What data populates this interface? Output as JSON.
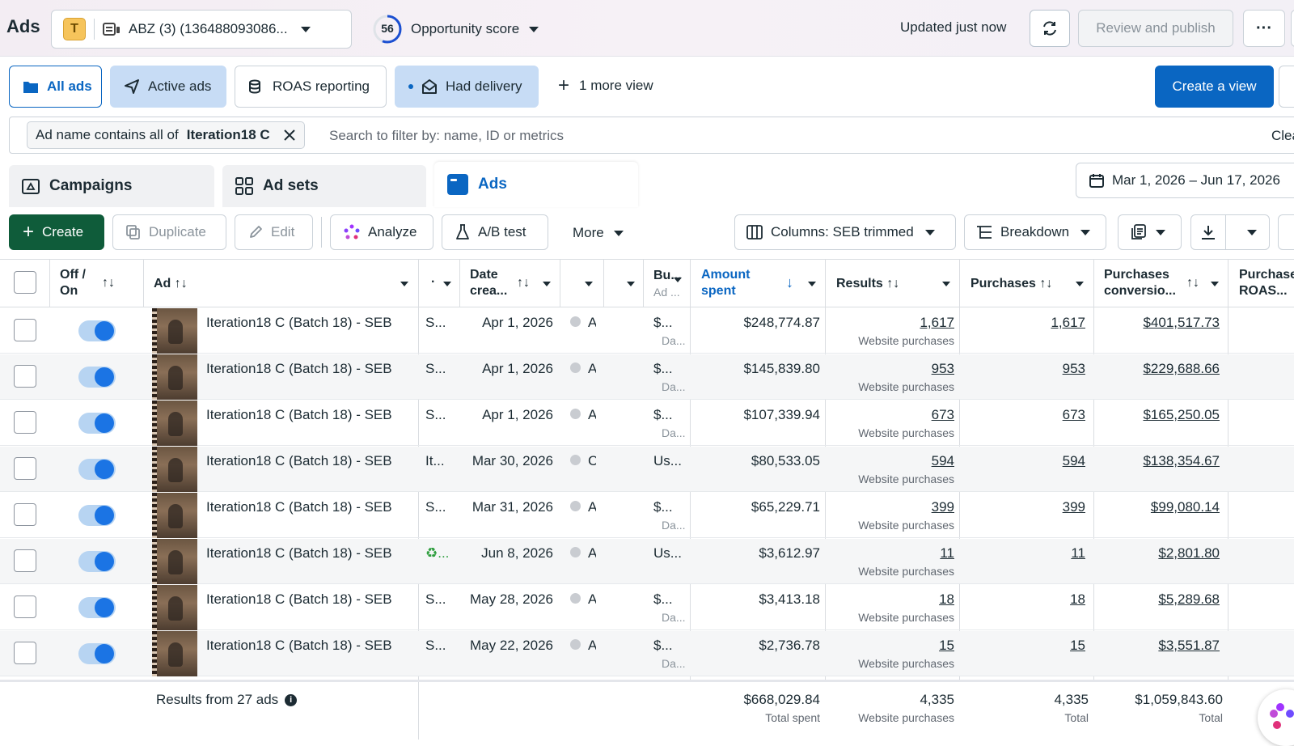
{
  "header": {
    "title": "Ads",
    "account_badge": "T",
    "account_name": "ABZ (3) (136488093086...",
    "opportunity_value": "56",
    "opportunity_label": "Opportunity score",
    "updated": "Updated just now",
    "review_publish": "Review and publish",
    "more_icon": "ellipsis-icon"
  },
  "views": {
    "all_ads": "All ads",
    "active_ads": "Active ads",
    "roas_reporting": "ROAS reporting",
    "had_delivery": "Had delivery",
    "more_view": "1 more view",
    "create_view": "Create a view"
  },
  "filter": {
    "chip_prefix": "Ad name contains all of",
    "chip_value": "Iteration18 C",
    "placeholder": "Search to filter by: name, ID or metrics",
    "clear": "Clea"
  },
  "tabs": {
    "campaigns": "Campaigns",
    "ad_sets": "Ad sets",
    "ads": "Ads",
    "date_range": "Mar 1, 2026 – Jun 17, 2026"
  },
  "toolbar": {
    "create": "Create",
    "duplicate": "Duplicate",
    "edit": "Edit",
    "analyze": "Analyze",
    "ab_test": "A/B test",
    "more": "More",
    "columns": "Columns: SEB trimmed",
    "breakdown": "Breakdown"
  },
  "columns": {
    "off_on_1": "Off /",
    "off_on_2": "On",
    "ad": "Ad",
    "date_1": "Date",
    "date_2": "crea...",
    "bu_1": "Bu...",
    "bu_2": "Ad ...",
    "amount_1": "Amount",
    "amount_2": "spent",
    "results": "Results",
    "purchases": "Purchases",
    "pconv_1": "Purchases",
    "pconv_2": "conversio...",
    "roas_1": "Purchase",
    "roas_2": "ROAS..."
  },
  "rows": [
    {
      "name": "Iteration18 C (Batch 18) - SEB",
      "c1": "S...",
      "date": "Apr 1, 2026",
      "c2": "A",
      "bu": "$...",
      "bu_sub": "Da...",
      "amount": "$248,774.87",
      "results": "1,617",
      "results_sub": "Website purchases",
      "purchases": "1,617",
      "conv": "$401,517.73"
    },
    {
      "name": "Iteration18 C (Batch 18) - SEB",
      "c1": "S...",
      "date": "Apr 1, 2026",
      "c2": "A",
      "bu": "$...",
      "bu_sub": "Da...",
      "amount": "$145,839.80",
      "results": "953",
      "results_sub": "Website purchases",
      "purchases": "953",
      "conv": "$229,688.66"
    },
    {
      "name": "Iteration18 C (Batch 18) - SEB",
      "c1": "S...",
      "date": "Apr 1, 2026",
      "c2": "A",
      "bu": "$...",
      "bu_sub": "Da...",
      "amount": "$107,339.94",
      "results": "673",
      "results_sub": "Website purchases",
      "purchases": "673",
      "conv": "$165,250.05"
    },
    {
      "name": "Iteration18 C (Batch 18) - SEB",
      "c1": "It...",
      "date": "Mar 30, 2026",
      "c2": "C",
      "bu": "Us...",
      "bu_sub": "",
      "amount": "$80,533.05",
      "results": "594",
      "results_sub": "Website purchases",
      "purchases": "594",
      "conv": "$138,354.67"
    },
    {
      "name": "Iteration18 C (Batch 18) - SEB",
      "c1": "S...",
      "date": "Mar 31, 2026",
      "c2": "A",
      "bu": "$...",
      "bu_sub": "Da...",
      "amount": "$65,229.71",
      "results": "399",
      "results_sub": "Website purchases",
      "purchases": "399",
      "conv": "$99,080.14"
    },
    {
      "name": "Iteration18 C (Batch 18) - SEB",
      "c1": "♻...",
      "date": "Jun 8, 2026",
      "c2": "A",
      "bu": "Us...",
      "bu_sub": "",
      "amount": "$3,612.97",
      "results": "11",
      "results_sub": "Website purchases",
      "purchases": "11",
      "conv": "$2,801.80"
    },
    {
      "name": "Iteration18 C (Batch 18) - SEB",
      "c1": "S...",
      "date": "May 28, 2026",
      "c2": "A",
      "bu": "$...",
      "bu_sub": "Da...",
      "amount": "$3,413.18",
      "results": "18",
      "results_sub": "Website purchases",
      "purchases": "18",
      "conv": "$5,289.68"
    },
    {
      "name": "Iteration18 C (Batch 18) - SEB",
      "c1": "S...",
      "date": "May 22, 2026",
      "c2": "A",
      "bu": "$...",
      "bu_sub": "Da...",
      "amount": "$2,736.78",
      "results": "15",
      "results_sub": "Website purchases",
      "purchases": "15",
      "conv": "$3,551.87"
    }
  ],
  "footer": {
    "label": "Results from 27 ads",
    "amount": "$668,029.84",
    "amount_sub": "Total spent",
    "results": "4,335",
    "results_sub": "Website purchases",
    "purchases": "4,335",
    "purchases_sub": "Total",
    "conv": "$1,059,843.60",
    "conv_sub": "Total"
  },
  "colors": {
    "accent": "#0a66c2",
    "create_green": "#0f5c3a",
    "view_active": "#c7dcf5",
    "toggle_on": "#1b74e4"
  }
}
